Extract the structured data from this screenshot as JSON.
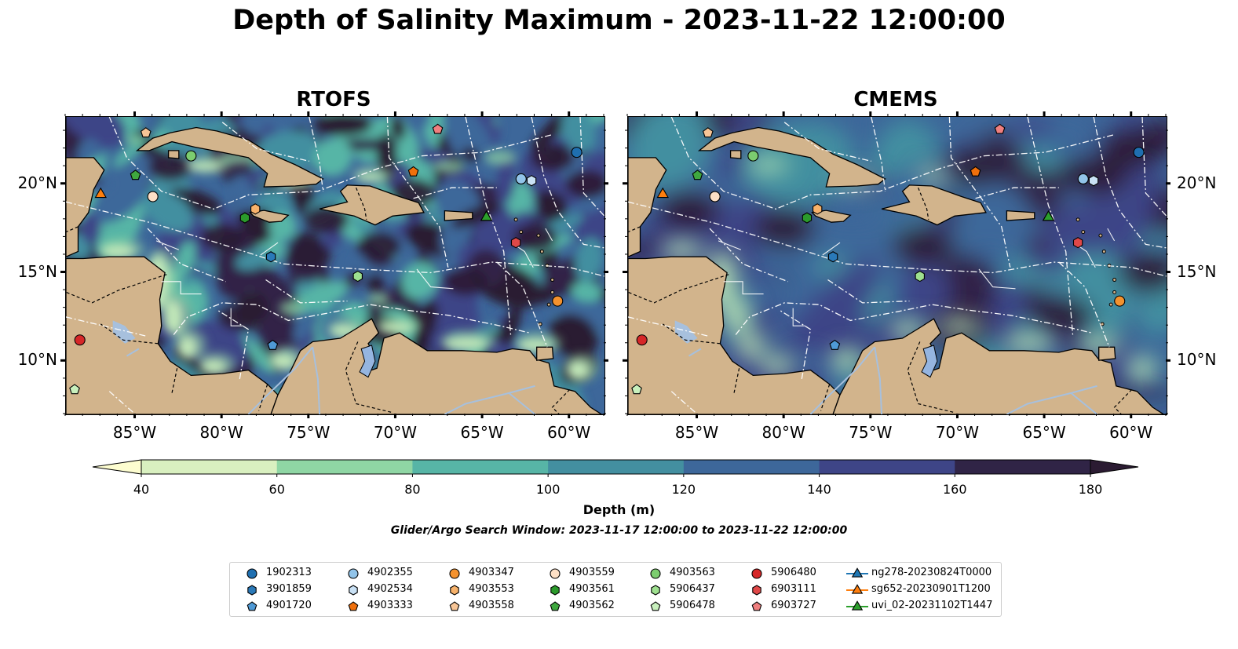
{
  "title": "Depth of Salinity Maximum - 2023-11-22 12:00:00",
  "panels": [
    {
      "name": "RTOFS",
      "style": "rtofs"
    },
    {
      "name": "CMEMS",
      "style": "cmems"
    }
  ],
  "map": {
    "lon_range": [
      -89,
      -58
    ],
    "lat_range": [
      7,
      23.8
    ],
    "lon_ticks": [
      -85,
      -80,
      -75,
      -70,
      -65,
      -60
    ],
    "lon_tick_labels": [
      "85°W",
      "80°W",
      "75°W",
      "70°W",
      "65°W",
      "60°W"
    ],
    "lat_ticks": [
      10,
      15,
      20
    ],
    "lat_tick_labels": [
      "10°N",
      "15°N",
      "20°N"
    ]
  },
  "colorbar": {
    "label": "Depth (m)",
    "levels": [
      40,
      60,
      80,
      100,
      120,
      140,
      160,
      180
    ],
    "tick_labels": [
      "40",
      "60",
      "80",
      "100",
      "120",
      "140",
      "160",
      "180"
    ],
    "colors": [
      "#d9f0c0",
      "#8fd6a4",
      "#57b5a6",
      "#438fa0",
      "#3d679a",
      "#3e4587",
      "#302446"
    ],
    "under_color": "#fdfdd0",
    "over_color": "#2b1b32",
    "extend": "both"
  },
  "search_window": "Glider/Argo Search Window: 2023-11-17 12:00:00 to 2023-11-22 12:00:00",
  "colors": {
    "land": "#d2b48c",
    "water_body": "#95b5e0",
    "river": "#a7c0dd"
  },
  "observations": [
    {
      "id": "1902313",
      "marker": "circle",
      "color": "#1f6fb0",
      "lon": -59.6,
      "lat": 21.8
    },
    {
      "id": "3901859",
      "marker": "hexagon",
      "color": "#2a79b8",
      "lon": -77.2,
      "lat": 15.9
    },
    {
      "id": "4901720",
      "marker": "pentagon",
      "color": "#4f9ad6",
      "lon": -77.1,
      "lat": 10.9
    },
    {
      "id": "4902355",
      "marker": "circle",
      "color": "#92c4e9",
      "lon": -62.8,
      "lat": 20.3
    },
    {
      "id": "4902534",
      "marker": "hexagon",
      "color": "#c9e1f5",
      "lon": -62.2,
      "lat": 20.2
    },
    {
      "id": "4903333",
      "marker": "pentagon",
      "color": "#f0700c",
      "lon": -69.0,
      "lat": 20.7
    },
    {
      "id": "4903347",
      "marker": "circle",
      "color": "#f4922e",
      "lon": -60.7,
      "lat": 13.4
    },
    {
      "id": "4903553",
      "marker": "hexagon",
      "color": "#f7b26b",
      "lon": -78.1,
      "lat": 18.6
    },
    {
      "id": "4903558",
      "marker": "pentagon",
      "color": "#f7c596",
      "lon": -84.4,
      "lat": 22.9
    },
    {
      "id": "4903559",
      "marker": "circle",
      "color": "#fde0c6",
      "lon": -84.0,
      "lat": 19.3
    },
    {
      "id": "4903561",
      "marker": "hexagon",
      "color": "#2b9a2b",
      "lon": -78.7,
      "lat": 18.1
    },
    {
      "id": "4903562",
      "marker": "pentagon",
      "color": "#3fa83f",
      "lon": -85.0,
      "lat": 20.5
    },
    {
      "id": "4903563",
      "marker": "circle",
      "color": "#7ccd6f",
      "lon": -81.8,
      "lat": 21.6
    },
    {
      "id": "5906437",
      "marker": "hexagon",
      "color": "#9ee08f",
      "lon": -72.2,
      "lat": 14.8
    },
    {
      "id": "5906478",
      "marker": "pentagon",
      "color": "#c8f0bd",
      "lon": -88.5,
      "lat": 8.4
    },
    {
      "id": "5906480",
      "marker": "circle",
      "color": "#d62728",
      "lon": -88.2,
      "lat": 11.2
    },
    {
      "id": "6903111",
      "marker": "hexagon",
      "color": "#e04848",
      "lon": -63.1,
      "lat": 16.7
    },
    {
      "id": "6903727",
      "marker": "pentagon",
      "color": "#f07f7f",
      "lon": -67.6,
      "lat": 23.1
    },
    {
      "id": "ng278-20230824T0000",
      "marker": "triangle",
      "color": "#1f77b4",
      "line": true,
      "lon": -64.8,
      "lat": 18.2
    },
    {
      "id": "sg652-20230901T1200",
      "marker": "triangle",
      "color": "#ff7f0e",
      "line": true,
      "lon": -87.0,
      "lat": 19.5
    },
    {
      "id": "uvi_02-20231102T1447",
      "marker": "triangle",
      "color": "#2ca02c",
      "line": true,
      "lon": -64.8,
      "lat": 18.2
    }
  ]
}
